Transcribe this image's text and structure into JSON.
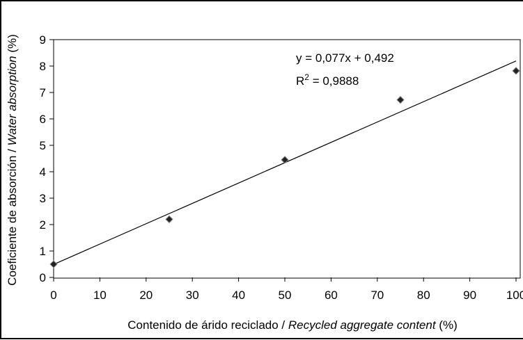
{
  "chart_data": {
    "type": "scatter",
    "x": [
      0,
      25,
      50,
      75,
      100
    ],
    "y": [
      0.5,
      2.2,
      4.45,
      6.72,
      7.82
    ],
    "xlim": [
      0,
      100
    ],
    "ylim": [
      0,
      9
    ],
    "x_ticks": [
      "0",
      "10",
      "20",
      "30",
      "40",
      "50",
      "60",
      "70",
      "80",
      "90",
      "100"
    ],
    "y_ticks": [
      "0",
      "1",
      "2",
      "3",
      "4",
      "5",
      "6",
      "7",
      "8",
      "9"
    ],
    "xlabel": {
      "plain": "Contenido de árido reciclado / ",
      "italic": "Recycled aggregate content",
      "unit": " (%)"
    },
    "ylabel": {
      "plain": "Coeficiente de absorción / ",
      "italic": "Water absorption",
      "unit": " (%)"
    },
    "trendline": {
      "slope": 0.077,
      "intercept": 0.492,
      "equation": "y = 0,077x + 0,492",
      "r2_label": "R",
      "r2_exponent": "2",
      "r2_value": " = 0,9888"
    },
    "grid": false,
    "legend": "none",
    "marker": "diamond",
    "colors": {
      "marker_fill": "#222222",
      "marker_edge": "#888888",
      "line": "#000000",
      "axis": "#000000"
    }
  }
}
